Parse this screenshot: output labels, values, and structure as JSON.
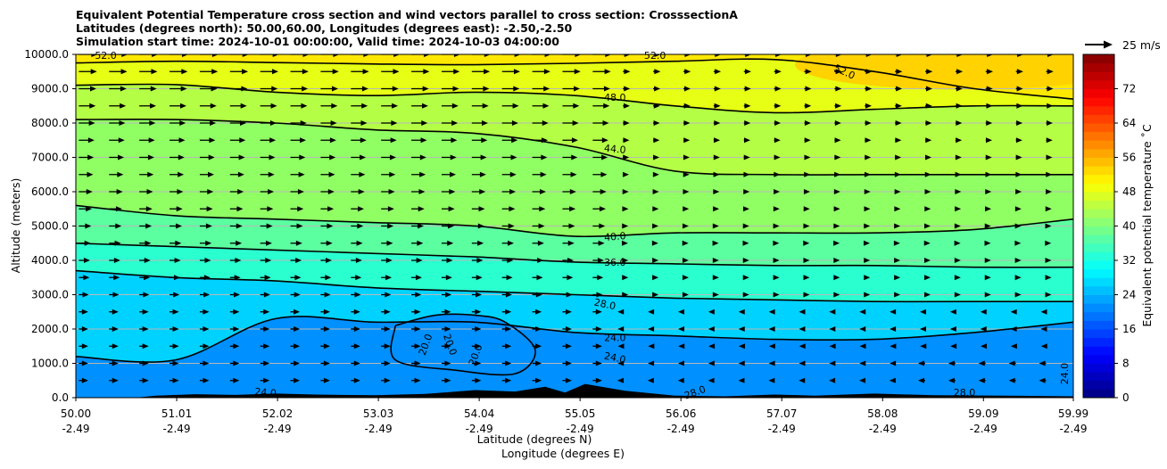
{
  "chart_data": {
    "type": "contour",
    "title_lines": [
      "Equivalent Potential Temperature cross section and wind vectors parallel to cross section: CrosssectionA",
      "Latitudes (degrees north): 50.00,60.00, Longitudes (degrees east): -2.50,-2.50",
      "Simulation start time: 2024-10-01 00:00:00, Valid time: 2024-10-03 04:00:00"
    ],
    "ylabel": "Altitude (meters)",
    "xlabel_lines": [
      "Latitude (degrees N)",
      "Longitude (degrees E)"
    ],
    "ylim": [
      0,
      10000
    ],
    "xlim": [
      50.0,
      59.99
    ],
    "yticks": [
      "0.0",
      "1000.0",
      "2000.0",
      "3000.0",
      "4000.0",
      "5000.0",
      "6000.0",
      "7000.0",
      "8000.0",
      "9000.0",
      "10000.0"
    ],
    "xticks": [
      {
        "lat": "50.00",
        "lon": "-2.49"
      },
      {
        "lat": "51.01",
        "lon": "-2.49"
      },
      {
        "lat": "52.02",
        "lon": "-2.49"
      },
      {
        "lat": "53.03",
        "lon": "-2.49"
      },
      {
        "lat": "54.04",
        "lon": "-2.49"
      },
      {
        "lat": "55.05",
        "lon": "-2.49"
      },
      {
        "lat": "56.06",
        "lon": "-2.49"
      },
      {
        "lat": "57.07",
        "lon": "-2.49"
      },
      {
        "lat": "58.08",
        "lon": "-2.49"
      },
      {
        "lat": "59.09",
        "lon": "-2.49"
      },
      {
        "lat": "59.99",
        "lon": "-2.49"
      }
    ],
    "contour_labels": [
      "52.0",
      "52.0",
      "52.0",
      "48.0",
      "44.0",
      "40.0",
      "36.0",
      "28.0",
      "24.0",
      "24.0",
      "20.0",
      "20.0",
      "20.0",
      "24.0",
      "24.0",
      "28.0",
      "28.0"
    ],
    "contour_levels": [
      {
        "level": 52,
        "x": [
          50.0,
          51.0,
          52.0,
          53.0,
          54.0,
          55.0,
          56.0,
          57.0,
          58.0,
          59.0,
          59.99
        ],
        "y": [
          9750,
          9800,
          9760,
          9720,
          9700,
          9740,
          9800,
          9850,
          9500,
          9000,
          8700
        ]
      },
      {
        "level": 48,
        "x": [
          50.0,
          51.0,
          52.0,
          53.0,
          54.0,
          55.0,
          56.0,
          57.0,
          58.0,
          59.0,
          59.99
        ],
        "y": [
          9100,
          9120,
          8900,
          8800,
          8900,
          8800,
          8500,
          8300,
          8400,
          8500,
          8500
        ]
      },
      {
        "level": 44,
        "x": [
          50.0,
          51.0,
          52.0,
          53.0,
          54.0,
          55.0,
          56.0,
          57.0,
          58.0,
          59.0,
          59.99
        ],
        "y": [
          8100,
          8100,
          8000,
          7800,
          7700,
          7300,
          6600,
          6500,
          6500,
          6500,
          6500
        ]
      },
      {
        "level": 40,
        "x": [
          50.0,
          51.0,
          52.0,
          53.0,
          54.0,
          55.0,
          56.0,
          57.0,
          58.0,
          59.0,
          59.99
        ],
        "y": [
          5600,
          5300,
          5200,
          5100,
          5000,
          4700,
          4800,
          4800,
          4800,
          4900,
          5200
        ]
      },
      {
        "level": 36,
        "x": [
          50.0,
          51.0,
          52.0,
          53.0,
          54.0,
          55.0,
          56.0,
          57.0,
          58.0,
          59.0,
          59.99
        ],
        "y": [
          4500,
          4400,
          4300,
          4200,
          4100,
          3950,
          3900,
          3850,
          3850,
          3800,
          3800
        ]
      },
      {
        "level": 28,
        "x": [
          50.0,
          51.0,
          52.0,
          53.0,
          54.0,
          55.0,
          56.0,
          57.0,
          58.0,
          59.0,
          59.99
        ],
        "y": [
          3700,
          3500,
          3400,
          3200,
          3100,
          3000,
          2900,
          2850,
          2800,
          2800,
          2800
        ]
      },
      {
        "level": 24,
        "x": [
          50.0,
          51.0,
          52.0,
          53.0,
          54.0,
          55.0,
          56.0,
          57.0,
          58.0,
          59.0,
          59.99
        ],
        "y": [
          1200,
          1100,
          2300,
          2200,
          2200,
          1900,
          1800,
          1700,
          1700,
          1900,
          2200
        ]
      },
      {
        "level": 20,
        "x": [
          53.2,
          53.6,
          54.0,
          54.3,
          54.6,
          54.4,
          53.8,
          53.2
        ],
        "y": [
          2100,
          2400,
          2400,
          2200,
          1400,
          700,
          800,
          1100
        ]
      }
    ],
    "colorbar": {
      "label": "Equivalent potential temperature ˚C",
      "ticks": [
        "0",
        "8",
        "16",
        "24",
        "32",
        "40",
        "48",
        "56",
        "64",
        "72"
      ],
      "range": [
        0,
        80
      ],
      "colormap": "jet"
    },
    "wind_vector_key": "25 m/s",
    "field_bands": [
      {
        "from": 0,
        "to": 16,
        "color": "#0090ff"
      },
      {
        "from": 16,
        "to": 22,
        "color": "#00aaff"
      },
      {
        "from": 22,
        "to": 28,
        "color": "#00d2ff"
      },
      {
        "from": 28,
        "to": 34,
        "color": "#2affd0"
      },
      {
        "from": 34,
        "to": 40,
        "color": "#5cffa0"
      },
      {
        "from": 40,
        "to": 44,
        "color": "#90ff64"
      },
      {
        "from": 44,
        "to": 48,
        "color": "#b4ff46"
      },
      {
        "from": 48,
        "to": 52,
        "color": "#e6ff14"
      },
      {
        "from": 52,
        "to": 56,
        "color": "#ffe800"
      },
      {
        "from": 56,
        "to": 60,
        "color": "#ffd200"
      }
    ]
  }
}
